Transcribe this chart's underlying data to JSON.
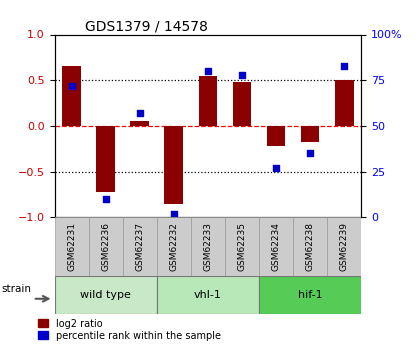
{
  "title": "GDS1379 / 14578",
  "samples": [
    "GSM62231",
    "GSM62236",
    "GSM62237",
    "GSM62232",
    "GSM62233",
    "GSM62235",
    "GSM62234",
    "GSM62238",
    "GSM62239"
  ],
  "log2_ratio": [
    0.65,
    -0.72,
    0.05,
    -0.85,
    0.55,
    0.48,
    -0.22,
    -0.18,
    0.5
  ],
  "pct_rank": [
    72,
    10,
    57,
    2,
    80,
    78,
    27,
    35,
    83
  ],
  "groups": [
    {
      "label": "wild type",
      "start": 0,
      "end": 3,
      "color": "#c8e8c8"
    },
    {
      "label": "vhl-1",
      "start": 3,
      "end": 6,
      "color": "#b8e8b8"
    },
    {
      "label": "hif-1",
      "start": 6,
      "end": 9,
      "color": "#55cc55"
    }
  ],
  "bar_color": "#8B0000",
  "dot_color": "#0000CC",
  "left_ylim": [
    -1,
    1
  ],
  "right_ylim": [
    0,
    100
  ],
  "left_yticks": [
    -1,
    -0.5,
    0,
    0.5,
    1
  ],
  "right_yticks": [
    0,
    25,
    50,
    75,
    100
  ],
  "hline_color_zero": "#FF0000",
  "hline_color_dotted": "#000000",
  "bg_color": "#ffffff",
  "sample_box_color": "#cccccc"
}
